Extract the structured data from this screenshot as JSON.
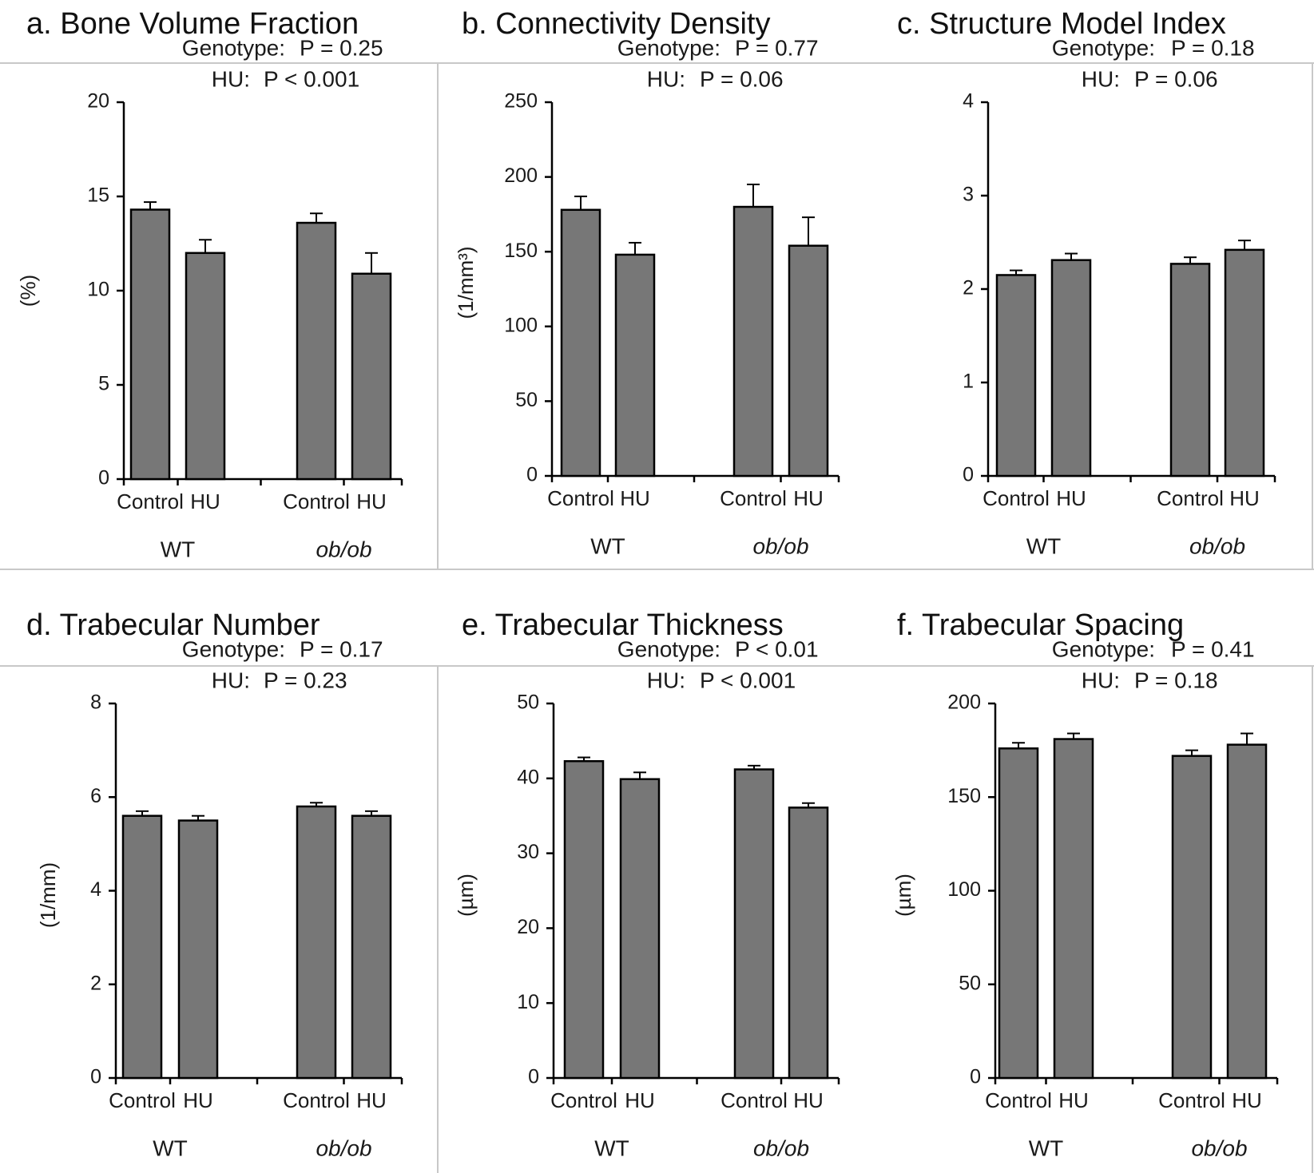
{
  "colors": {
    "bar": "#777777",
    "outline": "#000000",
    "frame": "#c8c8c8",
    "text": "#1a1a1a"
  },
  "chart_data": [
    {
      "type": "bar",
      "title": "a. Bone Volume Fraction",
      "ylabel": "(%)",
      "ylim": [
        0,
        20
      ],
      "yticks": [
        0,
        5,
        10,
        15,
        20
      ],
      "genotype_label": "Genotype:",
      "genotype_p": "P = 0.25",
      "hu_label": "HU:",
      "hu_p": "P < 0.001",
      "groups": [
        {
          "name": "WT",
          "italic": false,
          "bars": [
            {
              "label": "Control",
              "value": 14.3,
              "error": 0.4
            },
            {
              "label": "HU",
              "value": 12.0,
              "error": 0.7
            }
          ]
        },
        {
          "name": "ob/ob",
          "italic": true,
          "bars": [
            {
              "label": "Control",
              "value": 13.6,
              "error": 0.5
            },
            {
              "label": "HU",
              "value": 10.9,
              "error": 1.1
            }
          ]
        }
      ]
    },
    {
      "type": "bar",
      "title": "b. Connectivity Density",
      "ylabel": "(1/mm³)",
      "ylim": [
        0,
        250
      ],
      "yticks": [
        0,
        50,
        100,
        150,
        200,
        250
      ],
      "genotype_label": "Genotype:",
      "genotype_p": "P = 0.77",
      "hu_label": "HU:",
      "hu_p": "P = 0.06",
      "groups": [
        {
          "name": "WT",
          "italic": false,
          "bars": [
            {
              "label": "Control",
              "value": 178,
              "error": 9
            },
            {
              "label": "HU",
              "value": 148,
              "error": 8
            }
          ]
        },
        {
          "name": "ob/ob",
          "italic": true,
          "bars": [
            {
              "label": "Control",
              "value": 180,
              "error": 15
            },
            {
              "label": "HU",
              "value": 154,
              "error": 19
            }
          ]
        }
      ]
    },
    {
      "type": "bar",
      "title": "c. Structure Model Index",
      "ylabel": "",
      "ylim": [
        0,
        4
      ],
      "yticks": [
        0,
        1,
        2,
        3,
        4
      ],
      "genotype_label": "Genotype:",
      "genotype_p": "P = 0.18",
      "hu_label": "HU:",
      "hu_p": "P = 0.06",
      "groups": [
        {
          "name": "WT",
          "italic": false,
          "bars": [
            {
              "label": "Control",
              "value": 2.15,
              "error": 0.05
            },
            {
              "label": "HU",
              "value": 2.31,
              "error": 0.07
            }
          ]
        },
        {
          "name": "ob/ob",
          "italic": true,
          "bars": [
            {
              "label": "Control",
              "value": 2.27,
              "error": 0.07
            },
            {
              "label": "HU",
              "value": 2.42,
              "error": 0.1
            }
          ]
        }
      ]
    },
    {
      "type": "bar",
      "title": "d. Trabecular Number",
      "ylabel": "(1/mm)",
      "ylim": [
        0,
        8
      ],
      "yticks": [
        0,
        2,
        4,
        6,
        8
      ],
      "genotype_label": "Genotype:",
      "genotype_p": "P = 0.17",
      "hu_label": "HU:",
      "hu_p": "P = 0.23",
      "groups": [
        {
          "name": "WT",
          "italic": false,
          "bars": [
            {
              "label": "Control",
              "value": 5.6,
              "error": 0.1
            },
            {
              "label": "HU",
              "value": 5.5,
              "error": 0.1
            }
          ]
        },
        {
          "name": "ob/ob",
          "italic": true,
          "bars": [
            {
              "label": "Control",
              "value": 5.8,
              "error": 0.08
            },
            {
              "label": "HU",
              "value": 5.6,
              "error": 0.1
            }
          ]
        }
      ]
    },
    {
      "type": "bar",
      "title": "e. Trabecular Thickness",
      "ylabel": "(µm)",
      "ylim": [
        0,
        50
      ],
      "yticks": [
        0,
        10,
        20,
        30,
        40,
        50
      ],
      "genotype_label": "Genotype:",
      "genotype_p": "P < 0.01",
      "hu_label": "HU:",
      "hu_p": "P < 0.001",
      "groups": [
        {
          "name": "WT",
          "italic": false,
          "bars": [
            {
              "label": "Control",
              "value": 42.3,
              "error": 0.5
            },
            {
              "label": "HU",
              "value": 39.9,
              "error": 0.9
            }
          ]
        },
        {
          "name": "ob/ob",
          "italic": true,
          "bars": [
            {
              "label": "Control",
              "value": 41.2,
              "error": 0.5
            },
            {
              "label": "HU",
              "value": 36.1,
              "error": 0.6
            }
          ]
        }
      ]
    },
    {
      "type": "bar",
      "title": "f. Trabecular Spacing",
      "ylabel": "(µm)",
      "ylim": [
        0,
        200
      ],
      "yticks": [
        0,
        50,
        100,
        150,
        200
      ],
      "genotype_label": "Genotype:",
      "genotype_p": "P = 0.41",
      "hu_label": "HU:",
      "hu_p": "P = 0.18",
      "groups": [
        {
          "name": "WT",
          "italic": false,
          "bars": [
            {
              "label": "Control",
              "value": 176,
              "error": 3
            },
            {
              "label": "HU",
              "value": 181,
              "error": 3
            }
          ]
        },
        {
          "name": "ob/ob",
          "italic": true,
          "bars": [
            {
              "label": "Control",
              "value": 172,
              "error": 3
            },
            {
              "label": "HU",
              "value": 178,
              "error": 6
            }
          ]
        }
      ]
    }
  ]
}
